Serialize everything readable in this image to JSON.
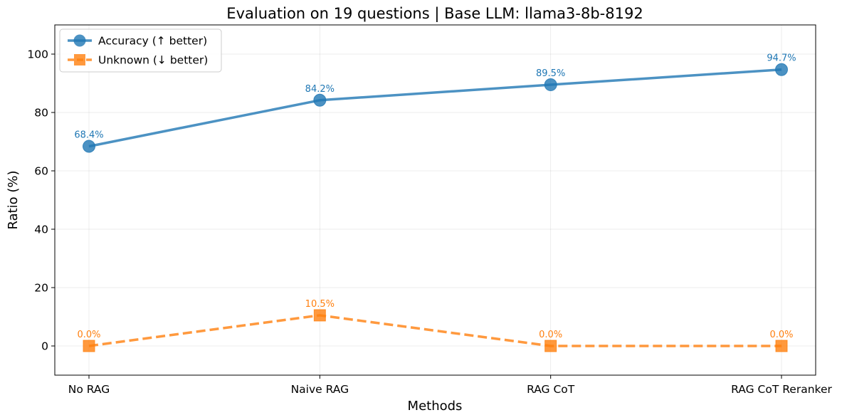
{
  "chart_data": {
    "type": "line",
    "title": "Evaluation on 19 questions | Base LLM: llama3-8b-8192",
    "xlabel": "Methods",
    "ylabel": "Ratio (%)",
    "categories": [
      "No RAG",
      "Naive RAG",
      "RAG CoT",
      "RAG CoT Reranker"
    ],
    "ylim": [
      -10,
      110
    ],
    "yticks": [
      0,
      20,
      40,
      60,
      80,
      100
    ],
    "ytick_labels": [
      "0",
      "20",
      "40",
      "60",
      "80",
      "100"
    ],
    "grid": true,
    "legend_position": "top-left",
    "series": [
      {
        "name": "Accuracy (↑ better)",
        "values": [
          68.4,
          84.2,
          89.5,
          94.7
        ],
        "labels": [
          "68.4%",
          "84.2%",
          "89.5%",
          "94.7%"
        ],
        "color": "#1f77b4",
        "marker": "circle",
        "linestyle": "solid"
      },
      {
        "name": "Unknown (↓ better)",
        "values": [
          0.0,
          10.5,
          0.0,
          0.0
        ],
        "labels": [
          "0.0%",
          "10.5%",
          "0.0%",
          "0.0%"
        ],
        "color": "#ff7f0e",
        "marker": "square",
        "linestyle": "dashed"
      }
    ]
  }
}
